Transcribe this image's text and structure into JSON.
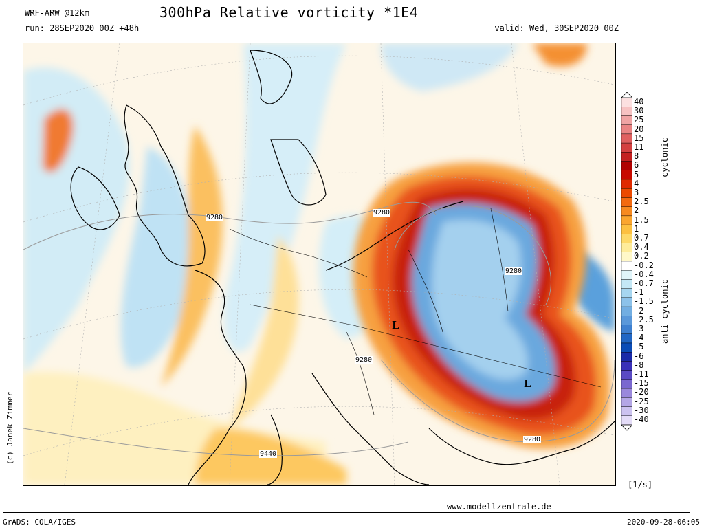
{
  "header": {
    "model": "WRF-ARW @12km",
    "title": "300hPa Relative vorticity *1E4",
    "run": "run: 28SEP2020 00Z +48h",
    "valid": "valid: Wed, 30SEP2020 00Z"
  },
  "footer": {
    "copyright": "(c) Janek Zimmer",
    "website": "www.modellzentrale.de",
    "software": "GrADS: COLA/IGES",
    "timestamp": "2020-09-28-06:05"
  },
  "colorbar": {
    "units": "[1/s]",
    "cyclonic_label": "cyclonic",
    "anticyclonic_label": "anti-cyclonic",
    "levels": [
      "40",
      "30",
      "25",
      "20",
      "15",
      "11",
      "8",
      "6",
      "5",
      "4",
      "3",
      "2.5",
      "2",
      "1.5",
      "1",
      "0.7",
      "0.4",
      "0.2",
      "-0.2",
      "-0.4",
      "-0.7",
      "-1",
      "-1.5",
      "-2",
      "-2.5",
      "-3",
      "-4",
      "-5",
      "-6",
      "-8",
      "-11",
      "-15",
      "-20",
      "-25",
      "-30",
      "-40"
    ],
    "colors": [
      "#fce0e0",
      "#f7c2c2",
      "#f0a4a4",
      "#ea8484",
      "#e06060",
      "#d44040",
      "#c42020",
      "#b00000",
      "#c80a00",
      "#e02a00",
      "#ec4a00",
      "#f36a10",
      "#f78a20",
      "#fba52e",
      "#fdc040",
      "#fed968",
      "#feec9a",
      "#fff8c8",
      "#ffffff",
      "#e0f5fa",
      "#c4e8f6",
      "#a6d6f0",
      "#8cc2ea",
      "#72aee2",
      "#5a98da",
      "#3e80d0",
      "#2066c4",
      "#0a4cb6",
      "#1a2aa8",
      "#3a30b8",
      "#5a4ac4",
      "#7a68d0",
      "#9a88dc",
      "#b4a6e6",
      "#ccc2f0",
      "#e4dcf8"
    ]
  },
  "map": {
    "contour_labels": [
      "9280",
      "9280",
      "9280",
      "9280",
      "9280",
      "9440"
    ],
    "low_markers": [
      "L",
      "L"
    ]
  }
}
